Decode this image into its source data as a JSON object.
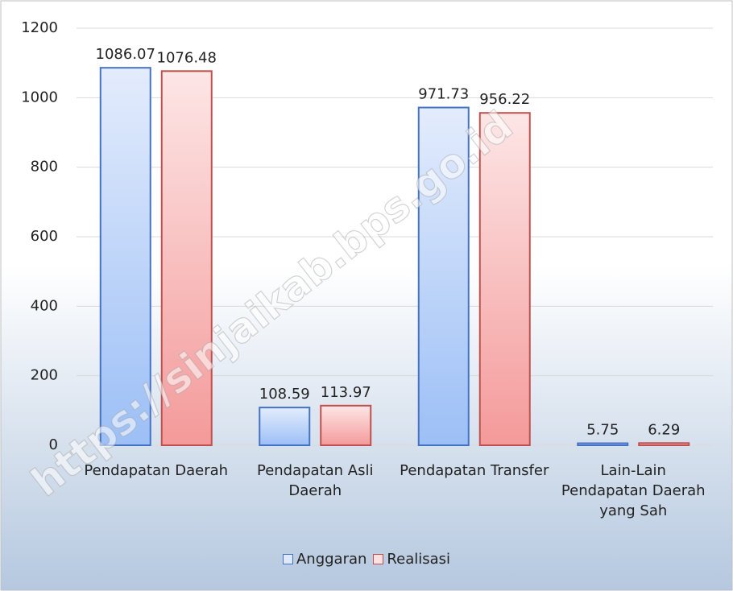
{
  "chart_data": {
    "type": "bar",
    "categories": [
      "Pendapatan Daerah",
      "Pendapatan Asli Daerah",
      "Pendapatan Transfer",
      "Lain-Lain Pendapatan Daerah yang Sah"
    ],
    "series": [
      {
        "name": "Anggaran",
        "color": "#4472c4",
        "values": [
          1086.07,
          108.59,
          971.73,
          5.75
        ]
      },
      {
        "name": "Realisasi",
        "color": "#c0504d",
        "values": [
          1076.48,
          113.97,
          956.22,
          6.29
        ]
      }
    ],
    "ylim": [
      0,
      1200
    ],
    "yticks": [
      0,
      200,
      400,
      600,
      800,
      1000,
      1200
    ],
    "grid": true,
    "legend": "bottom",
    "watermark": "https://sinjaikab.bps.go.id"
  }
}
